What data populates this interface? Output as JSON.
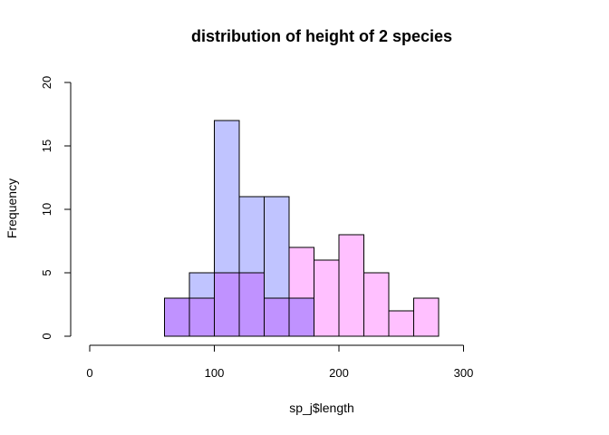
{
  "chart_data": {
    "type": "bar",
    "title": "distribution of height of 2 species",
    "xlabel": "sp_j$length",
    "ylabel": "Frequency",
    "xlim": [
      0,
      320
    ],
    "ylim": [
      0,
      20
    ],
    "x_ticks": [
      0,
      100,
      200,
      300
    ],
    "y_ticks": [
      0,
      5,
      10,
      15,
      20
    ],
    "bin_edges": [
      0,
      20,
      40,
      60,
      80,
      100,
      120,
      140,
      160,
      180,
      200,
      220,
      240,
      260,
      280,
      300,
      320
    ],
    "series": [
      {
        "color": "#c0c4ff",
        "values": [
          0,
          0,
          0,
          3,
          5,
          17,
          11,
          11,
          3,
          0,
          0,
          0,
          0,
          0,
          0,
          0
        ]
      },
      {
        "color": "#ffc0ff",
        "values": [
          0,
          0,
          0,
          3,
          3,
          5,
          5,
          3,
          7,
          6,
          8,
          5,
          2,
          3,
          0,
          0
        ]
      }
    ],
    "overlap_color": "#c092ff",
    "grid": false,
    "legend": "none"
  }
}
